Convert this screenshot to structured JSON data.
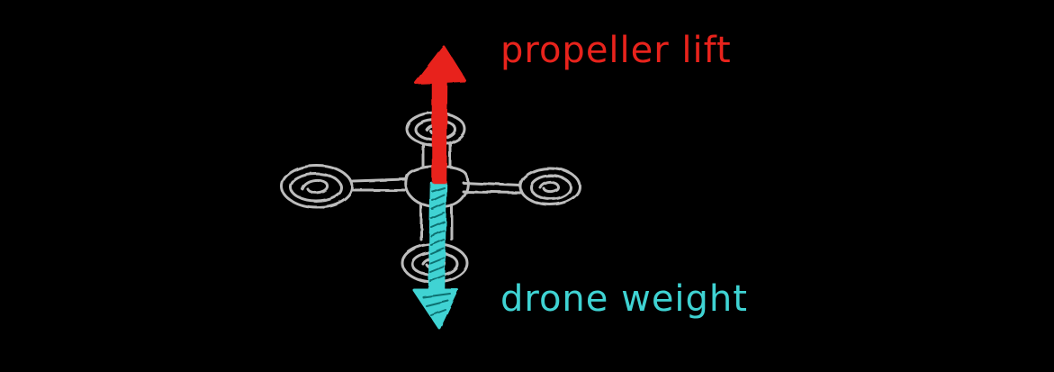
{
  "labels": {
    "lift": "propeller lift",
    "weight": "drone weight"
  },
  "colors": {
    "background": "#000000",
    "drone": "#bdbdbd",
    "lift": "#e8231c",
    "weight": "#3fd3d3"
  }
}
